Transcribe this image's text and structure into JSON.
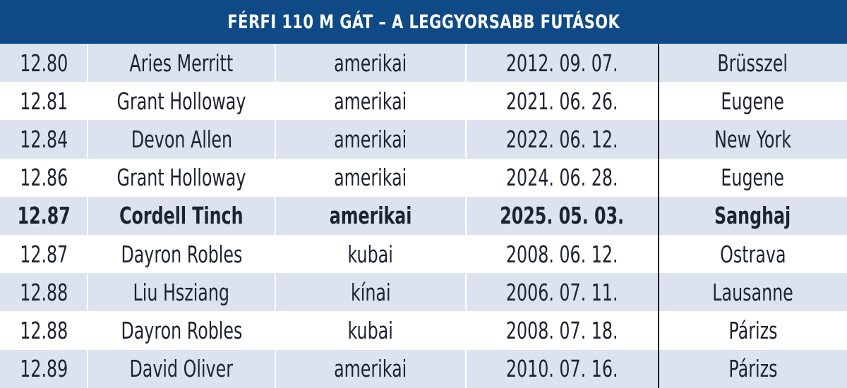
{
  "title": "FÉRFI 110 M GÁT – A LEGGYORSABB FUTÁSOK",
  "rows": [
    {
      "time": "12.80",
      "name": "Aries Merritt",
      "nat": "amerikai",
      "date": "2012. 09. 07.",
      "place": "Brüsszel",
      "bold": false
    },
    {
      "time": "12.81",
      "name": "Grant Holloway",
      "nat": "amerikai",
      "date": "2021. 06. 26.",
      "place": "Eugene",
      "bold": false
    },
    {
      "time": "12.84",
      "name": "Devon Allen",
      "nat": "amerikai",
      "date": "2022. 06. 12.",
      "place": "New York",
      "bold": false
    },
    {
      "time": "12.86",
      "name": "Grant Holloway",
      "nat": "amerikai",
      "date": "2024. 06. 28.",
      "place": "Eugene",
      "bold": false
    },
    {
      "time": "12.87",
      "name": "Cordell Tinch",
      "nat": "amerikai",
      "date": "2025. 05. 03.",
      "place": "Sanghaj",
      "bold": true
    },
    {
      "time": "12.87",
      "name": "Dayron Robles",
      "nat": "kubai",
      "date": "2008. 06. 12.",
      "place": "Ostrava",
      "bold": false
    },
    {
      "time": "12.88",
      "name": "Liu Hsziang",
      "nat": "kínai",
      "date": "2006. 07. 11.",
      "place": "Lausanne",
      "bold": false
    },
    {
      "time": "12.88",
      "name": "Dayron Robles",
      "nat": "kubai",
      "date": "2008. 07. 18.",
      "place": "Párizs",
      "bold": false
    },
    {
      "time": "12.89",
      "name": "David Oliver",
      "nat": "amerikai",
      "date": "2010. 07. 16.",
      "place": "Párizs",
      "bold": false
    }
  ],
  "colors": {
    "header_bg": "#0f4a86",
    "shaded_row": "#dde3ee",
    "plain_row": "#ffffff"
  }
}
